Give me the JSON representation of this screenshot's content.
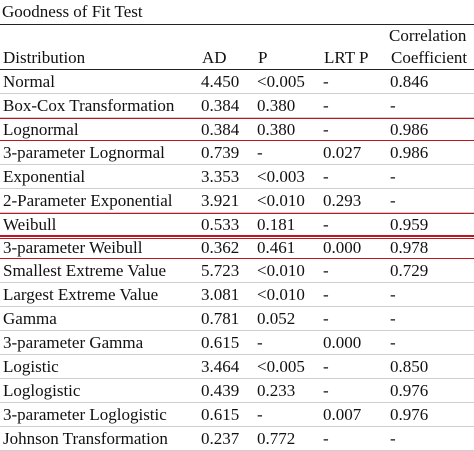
{
  "title": "Goodness of Fit Test",
  "header": {
    "group_label": "Correlation",
    "columns": [
      "Distribution",
      "AD",
      "P",
      "LRT P",
      "Coefficient"
    ]
  },
  "rows": [
    {
      "distribution": "Normal",
      "ad": "4.450",
      "p": "<0.005",
      "lrt_p": "-",
      "corr": "0.846",
      "highlight": false
    },
    {
      "distribution": "Box-Cox Transformation",
      "ad": "0.384",
      "p": "0.380",
      "lrt_p": "-",
      "corr": "-",
      "highlight": false
    },
    {
      "distribution": "Lognormal",
      "ad": "0.384",
      "p": "0.380",
      "lrt_p": "-",
      "corr": "0.986",
      "highlight": true
    },
    {
      "distribution": "3-parameter Lognormal",
      "ad": "0.739",
      "p": "-",
      "lrt_p": "0.027",
      "corr": "0.986",
      "highlight": false
    },
    {
      "distribution": "Exponential",
      "ad": "3.353",
      "p": "<0.003",
      "lrt_p": "-",
      "corr": "-",
      "highlight": false
    },
    {
      "distribution": "2-Parameter Exponential",
      "ad": "3.921",
      "p": "<0.010",
      "lrt_p": "0.293",
      "corr": "-",
      "highlight": false
    },
    {
      "distribution": "Weibull",
      "ad": "0.533",
      "p": "0.181",
      "lrt_p": "-",
      "corr": "0.959",
      "highlight": true
    },
    {
      "distribution": "3-parameter Weibull",
      "ad": "0.362",
      "p": "0.461",
      "lrt_p": "0.000",
      "corr": "0.978",
      "highlight": true
    },
    {
      "distribution": "Smallest Extreme Value",
      "ad": "5.723",
      "p": "<0.010",
      "lrt_p": "-",
      "corr": "0.729",
      "highlight": false
    },
    {
      "distribution": "Largest Extreme Value",
      "ad": "3.081",
      "p": "<0.010",
      "lrt_p": "-",
      "corr": "-",
      "highlight": false
    },
    {
      "distribution": "Gamma",
      "ad": "0.781",
      "p": "0.052",
      "lrt_p": "-",
      "corr": "-",
      "highlight": false
    },
    {
      "distribution": "3-parameter Gamma",
      "ad": "0.615",
      "p": "-",
      "lrt_p": "0.000",
      "corr": "-",
      "highlight": false
    },
    {
      "distribution": "Logistic",
      "ad": "3.464",
      "p": "<0.005",
      "lrt_p": "-",
      "corr": "0.850",
      "highlight": false
    },
    {
      "distribution": "Loglogistic",
      "ad": "0.439",
      "p": "0.233",
      "lrt_p": "-",
      "corr": "0.976",
      "highlight": false
    },
    {
      "distribution": "3-parameter Loglogistic",
      "ad": "0.615",
      "p": "-",
      "lrt_p": "0.007",
      "corr": "0.976",
      "highlight": false
    },
    {
      "distribution": "Johnson Transformation",
      "ad": "0.237",
      "p": "0.772",
      "lrt_p": "-",
      "corr": "-",
      "highlight": false
    }
  ],
  "colors": {
    "highlight_border": "#c0141e",
    "rule": "#222222"
  }
}
